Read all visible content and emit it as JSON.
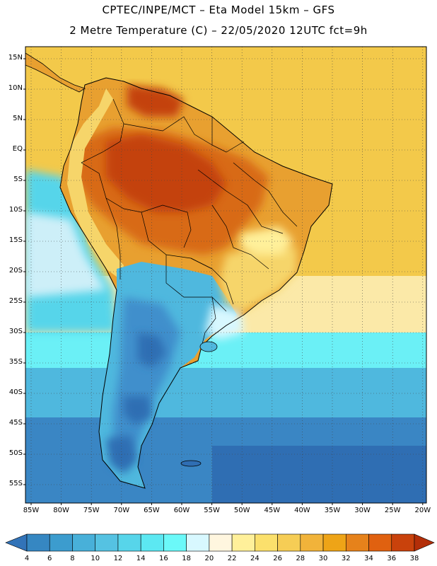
{
  "header": {
    "line1": "CPTEC/INPE/MCT –  Eta Model 15km – GFS",
    "line2": "2 Metre Temperature (C) – 22/05/2020 12UTC fct=9h"
  },
  "lat_labels": [
    "15N",
    "10N",
    "5N",
    "EQ",
    "5S",
    "10S",
    "15S",
    "20S",
    "25S",
    "30S",
    "35S",
    "40S",
    "45S",
    "50S",
    "55S"
  ],
  "lon_labels": [
    "85W",
    "80W",
    "75W",
    "70W",
    "65W",
    "60W",
    "55W",
    "50W",
    "45W",
    "40W",
    "35W",
    "30W",
    "25W",
    "20W"
  ],
  "colorbar": {
    "labels": [
      "4",
      "6",
      "8",
      "10",
      "12",
      "14",
      "16",
      "18",
      "20",
      "22",
      "24",
      "26",
      "28",
      "30",
      "32",
      "34",
      "36",
      "38"
    ],
    "colors": [
      "#3273b8",
      "#3687c2",
      "#3c9cce",
      "#48b0d9",
      "#55c2e2",
      "#57d5ea",
      "#5ce8f2",
      "#6bf9f9",
      "#d8f8ff",
      "#fff6df",
      "#fff09a",
      "#fbe06c",
      "#f6cd55",
      "#f1b33a",
      "#eea417",
      "#e6821b",
      "#e06110",
      "#c9420c",
      "#b32e08"
    ]
  },
  "colors": {
    "ocean_warm": "#f3c94a",
    "ocean_hot": "#f6d56a",
    "land_hot": "#d86a18",
    "land_very_hot": "#c4420c",
    "land_warm": "#e8a030",
    "cool_land": "#3f8fcc",
    "cold_ocean": "#2f6eb3",
    "cool_ocean": "#4fb8de",
    "outline": "#000000",
    "grid": "#333333"
  }
}
